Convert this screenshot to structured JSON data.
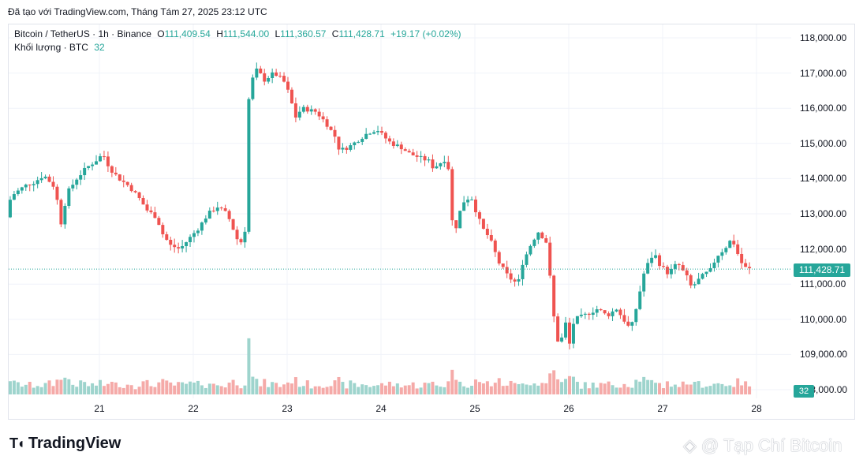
{
  "header": {
    "created_text": "Đã tạo với TradingView.com, Tháng Tám 27, 2025 23:12 UTC"
  },
  "legend": {
    "symbol": "Bitcoin / TetherUS · 1h · Binance",
    "o_label": "O",
    "o_value": "111,409.54",
    "h_label": "H",
    "h_value": "111,544.00",
    "l_label": "L",
    "l_value": "111,360.57",
    "c_label": "C",
    "c_value": "111,428.71",
    "change": "+19.17 (+0.02%)",
    "volume_label": "Khối lượng · BTC",
    "volume_value": "32"
  },
  "price_badge": "111,428.71",
  "volume_badge": "32",
  "colors": {
    "up": "#26a69a",
    "down": "#ef5350",
    "up_volume": "#9ed4cd",
    "down_volume": "#f5aaa8",
    "grid": "#f0f3fa"
  },
  "footer": {
    "logo_text": "TradingView",
    "logo_icon": "tradingview-logo-icon",
    "watermark": "@ Tạp Chí Bitcoin",
    "watermark_icon": "binance-diamond-icon"
  },
  "chart_data": {
    "type": "candlestick",
    "title": "Bitcoin / TetherUS · 1h · Binance",
    "y_axis_ticks": [
      "118,000.00",
      "117,000.00",
      "116,000.00",
      "115,000.00",
      "114,000.00",
      "113,000.00",
      "112,000.00",
      "111,000.00",
      "110,000.00",
      "109,000.00",
      "108,000.00"
    ],
    "y_range": [
      107700,
      118500
    ],
    "x_axis_ticks": [
      "21",
      "22",
      "23",
      "24",
      "25",
      "26",
      "27",
      "28"
    ],
    "last_price": 111428.71,
    "price_path": [
      [
        20.05,
        112900
      ],
      [
        20.1,
        113500
      ],
      [
        20.25,
        113800
      ],
      [
        20.35,
        113900
      ],
      [
        20.45,
        114100
      ],
      [
        20.55,
        113800
      ],
      [
        20.6,
        113300
      ],
      [
        20.63,
        112700
      ],
      [
        20.7,
        113600
      ],
      [
        20.8,
        114000
      ],
      [
        20.9,
        114300
      ],
      [
        21.0,
        114500
      ],
      [
        21.08,
        114700
      ],
      [
        21.15,
        114300
      ],
      [
        21.25,
        114000
      ],
      [
        21.35,
        113800
      ],
      [
        21.45,
        113500
      ],
      [
        21.55,
        113100
      ],
      [
        21.65,
        112900
      ],
      [
        21.72,
        112400
      ],
      [
        21.8,
        112100
      ],
      [
        21.9,
        112000
      ],
      [
        22.0,
        112300
      ],
      [
        22.1,
        112600
      ],
      [
        22.2,
        113000
      ],
      [
        22.3,
        113200
      ],
      [
        22.4,
        113000
      ],
      [
        22.45,
        112700
      ],
      [
        22.5,
        112300
      ],
      [
        22.55,
        112200
      ],
      [
        22.6,
        112600
      ],
      [
        22.62,
        115900
      ],
      [
        22.65,
        116700
      ],
      [
        22.72,
        117100
      ],
      [
        22.8,
        116800
      ],
      [
        22.9,
        117000
      ],
      [
        23.0,
        116800
      ],
      [
        23.08,
        116300
      ],
      [
        23.12,
        115700
      ],
      [
        23.2,
        116000
      ],
      [
        23.35,
        115900
      ],
      [
        23.45,
        115600
      ],
      [
        23.55,
        115200
      ],
      [
        23.6,
        114800
      ],
      [
        23.7,
        114900
      ],
      [
        23.8,
        115100
      ],
      [
        23.9,
        115300
      ],
      [
        24.0,
        115400
      ],
      [
        24.07,
        115200
      ],
      [
        24.15,
        115000
      ],
      [
        24.25,
        114900
      ],
      [
        24.35,
        114700
      ],
      [
        24.45,
        114600
      ],
      [
        24.55,
        114500
      ],
      [
        24.6,
        114300
      ],
      [
        24.7,
        114500
      ],
      [
        24.75,
        114600
      ],
      [
        24.8,
        112800
      ],
      [
        24.85,
        112600
      ],
      [
        24.9,
        113300
      ],
      [
        25.0,
        113500
      ],
      [
        25.05,
        113100
      ],
      [
        25.12,
        112600
      ],
      [
        25.2,
        112300
      ],
      [
        25.3,
        111600
      ],
      [
        25.4,
        111200
      ],
      [
        25.5,
        111000
      ],
      [
        25.55,
        111600
      ],
      [
        25.65,
        112200
      ],
      [
        25.72,
        112500
      ],
      [
        25.8,
        112200
      ],
      [
        25.85,
        111000
      ],
      [
        25.9,
        109600
      ],
      [
        25.95,
        109200
      ],
      [
        26.0,
        110000
      ],
      [
        26.05,
        109300
      ],
      [
        26.1,
        110000
      ],
      [
        26.2,
        110100
      ],
      [
        26.35,
        110300
      ],
      [
        26.45,
        110100
      ],
      [
        26.55,
        110300
      ],
      [
        26.65,
        109900
      ],
      [
        26.7,
        109700
      ],
      [
        26.75,
        110200
      ],
      [
        26.85,
        111400
      ],
      [
        26.95,
        111900
      ],
      [
        27.0,
        111600
      ],
      [
        27.1,
        111300
      ],
      [
        27.2,
        111600
      ],
      [
        27.3,
        111200
      ],
      [
        27.35,
        110900
      ],
      [
        27.45,
        111200
      ],
      [
        27.55,
        111400
      ],
      [
        27.62,
        111800
      ],
      [
        27.7,
        112000
      ],
      [
        27.78,
        112300
      ],
      [
        27.85,
        111800
      ],
      [
        27.9,
        111500
      ],
      [
        27.95,
        111430
      ]
    ]
  }
}
